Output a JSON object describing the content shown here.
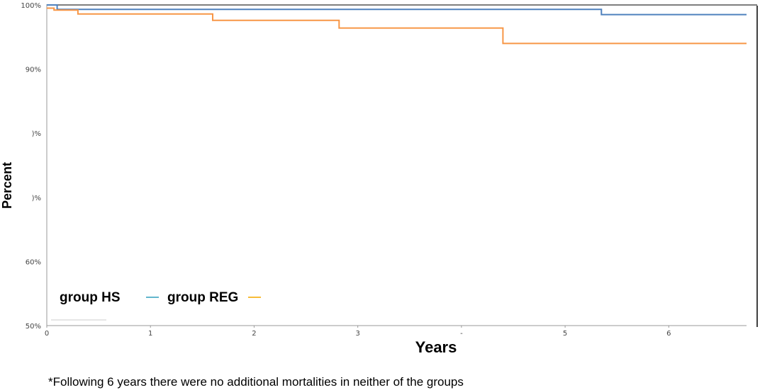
{
  "chart_data": {
    "type": "line",
    "step": true,
    "xlabel": "Years",
    "ylabel": "Percent",
    "xlim": [
      0,
      6.75
    ],
    "ylim": [
      50,
      100
    ],
    "x_ticks": [
      {
        "value": 0,
        "label": "0"
      },
      {
        "value": 1,
        "label": "1"
      },
      {
        "value": 2,
        "label": "2"
      },
      {
        "value": 3,
        "label": "3"
      },
      {
        "value": 4,
        "label": "-"
      },
      {
        "value": 5,
        "label": "5"
      },
      {
        "value": 6,
        "label": "6"
      }
    ],
    "y_ticks": [
      {
        "value": 100,
        "label": "100%"
      },
      {
        "value": 90,
        "label": "90%"
      },
      {
        "value": 80,
        "label": ")%"
      },
      {
        "value": 70,
        "label": ")%"
      },
      {
        "value": 60,
        "label": "60%"
      },
      {
        "value": 50,
        "label": "50%"
      }
    ],
    "grid": false,
    "legend_position": "bottom-left",
    "series": [
      {
        "name": "group HS",
        "color": "#4f81bd",
        "legend_marker_color": "#4bacc6",
        "points": [
          [
            0,
            100
          ],
          [
            0.1,
            100
          ],
          [
            0.1,
            99.3
          ],
          [
            5.35,
            99.3
          ],
          [
            5.35,
            98.5
          ],
          [
            6.75,
            98.5
          ]
        ]
      },
      {
        "name": "group REG",
        "color": "#f79646",
        "legend_marker_color": "#f6b31b",
        "points": [
          [
            0,
            99.5
          ],
          [
            0.07,
            99.5
          ],
          [
            0.07,
            99.2
          ],
          [
            0.3,
            99.2
          ],
          [
            0.3,
            98.6
          ],
          [
            1.6,
            98.6
          ],
          [
            1.6,
            97.6
          ],
          [
            2.82,
            97.6
          ],
          [
            2.82,
            96.4
          ],
          [
            4.4,
            96.4
          ],
          [
            4.4,
            94.0
          ],
          [
            6.75,
            94.0
          ]
        ]
      }
    ],
    "reference_line": {
      "value": 100,
      "color": "#555555"
    }
  },
  "footnote": "*Following 6 years there were no additional mortalities in neither of the groups"
}
